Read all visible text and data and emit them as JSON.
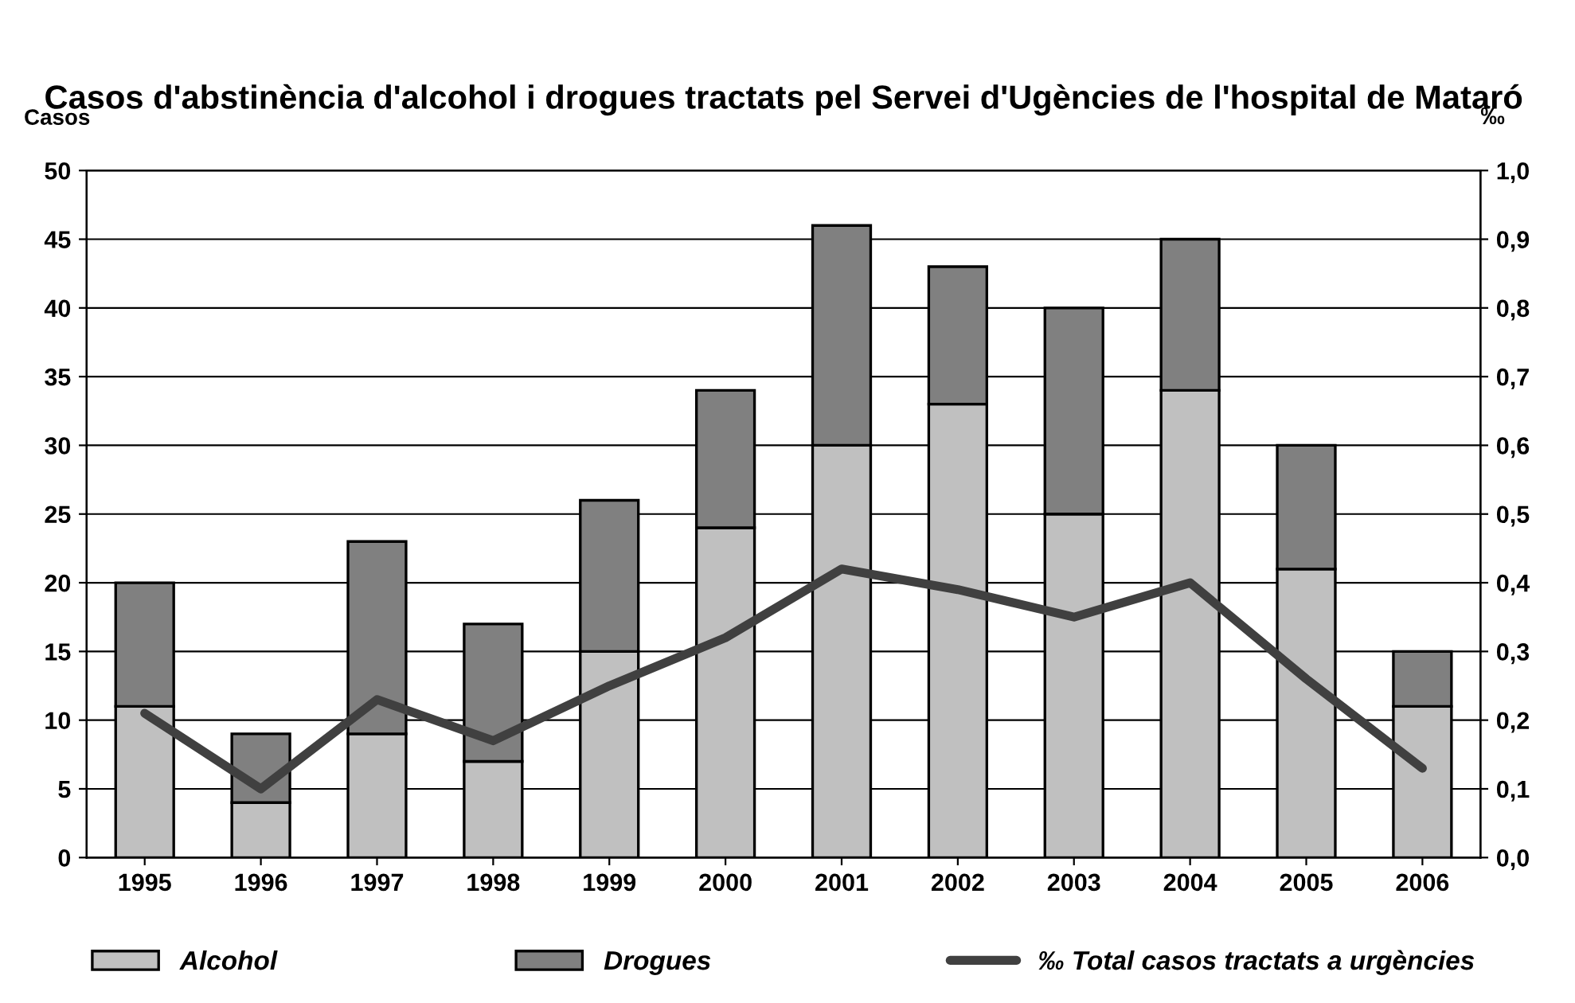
{
  "chart_data": {
    "type": "bar",
    "stacked": true,
    "title": "Casos d'abstinència d'alcohol i drogues tractats pel Servei d'Ugències de l'hospital de Mataró",
    "ylabel": "Casos",
    "y2label": "‰",
    "categories": [
      "1995",
      "1996",
      "1997",
      "1998",
      "1999",
      "2000",
      "2001",
      "2002",
      "2003",
      "2004",
      "2005",
      "2006"
    ],
    "series": [
      {
        "name": "Alcohol",
        "color": "#c0c0c0",
        "values": [
          11,
          4,
          9,
          7,
          15,
          24,
          30,
          33,
          25,
          34,
          21,
          11
        ]
      },
      {
        "name": "Drogues",
        "color": "#808080",
        "values": [
          9,
          5,
          14,
          10,
          11,
          10,
          16,
          10,
          15,
          11,
          9,
          4
        ]
      },
      {
        "name": "‰ Total casos tractats a urgències",
        "type": "line",
        "axis": "y2",
        "color": "#404040",
        "values": [
          0.21,
          0.1,
          0.23,
          0.17,
          0.25,
          0.32,
          0.42,
          0.39,
          0.35,
          0.4,
          0.26,
          0.13
        ]
      }
    ],
    "ylim": [
      0,
      50
    ],
    "yticks": [
      0,
      5,
      10,
      15,
      20,
      25,
      30,
      35,
      40,
      45,
      50
    ],
    "y2lim": [
      0,
      1.0
    ],
    "y2ticks": [
      {
        "value": 0,
        "label": "0,0"
      },
      {
        "value": 0.1,
        "label": "0,1"
      },
      {
        "value": 0.2,
        "label": "0,2"
      },
      {
        "value": 0.3,
        "label": "0,3"
      },
      {
        "value": 0.4,
        "label": "0,4"
      },
      {
        "value": 0.5,
        "label": "0,5"
      },
      {
        "value": 0.6,
        "label": "0,6"
      },
      {
        "value": 0.7,
        "label": "0,7"
      },
      {
        "value": 0.8,
        "label": "0,8"
      },
      {
        "value": 0.9,
        "label": "0,9"
      },
      {
        "value": 1.0,
        "label": "1,0"
      }
    ],
    "grid": "y",
    "legend": "bottom",
    "marker": "none",
    "line_style": "solid"
  }
}
